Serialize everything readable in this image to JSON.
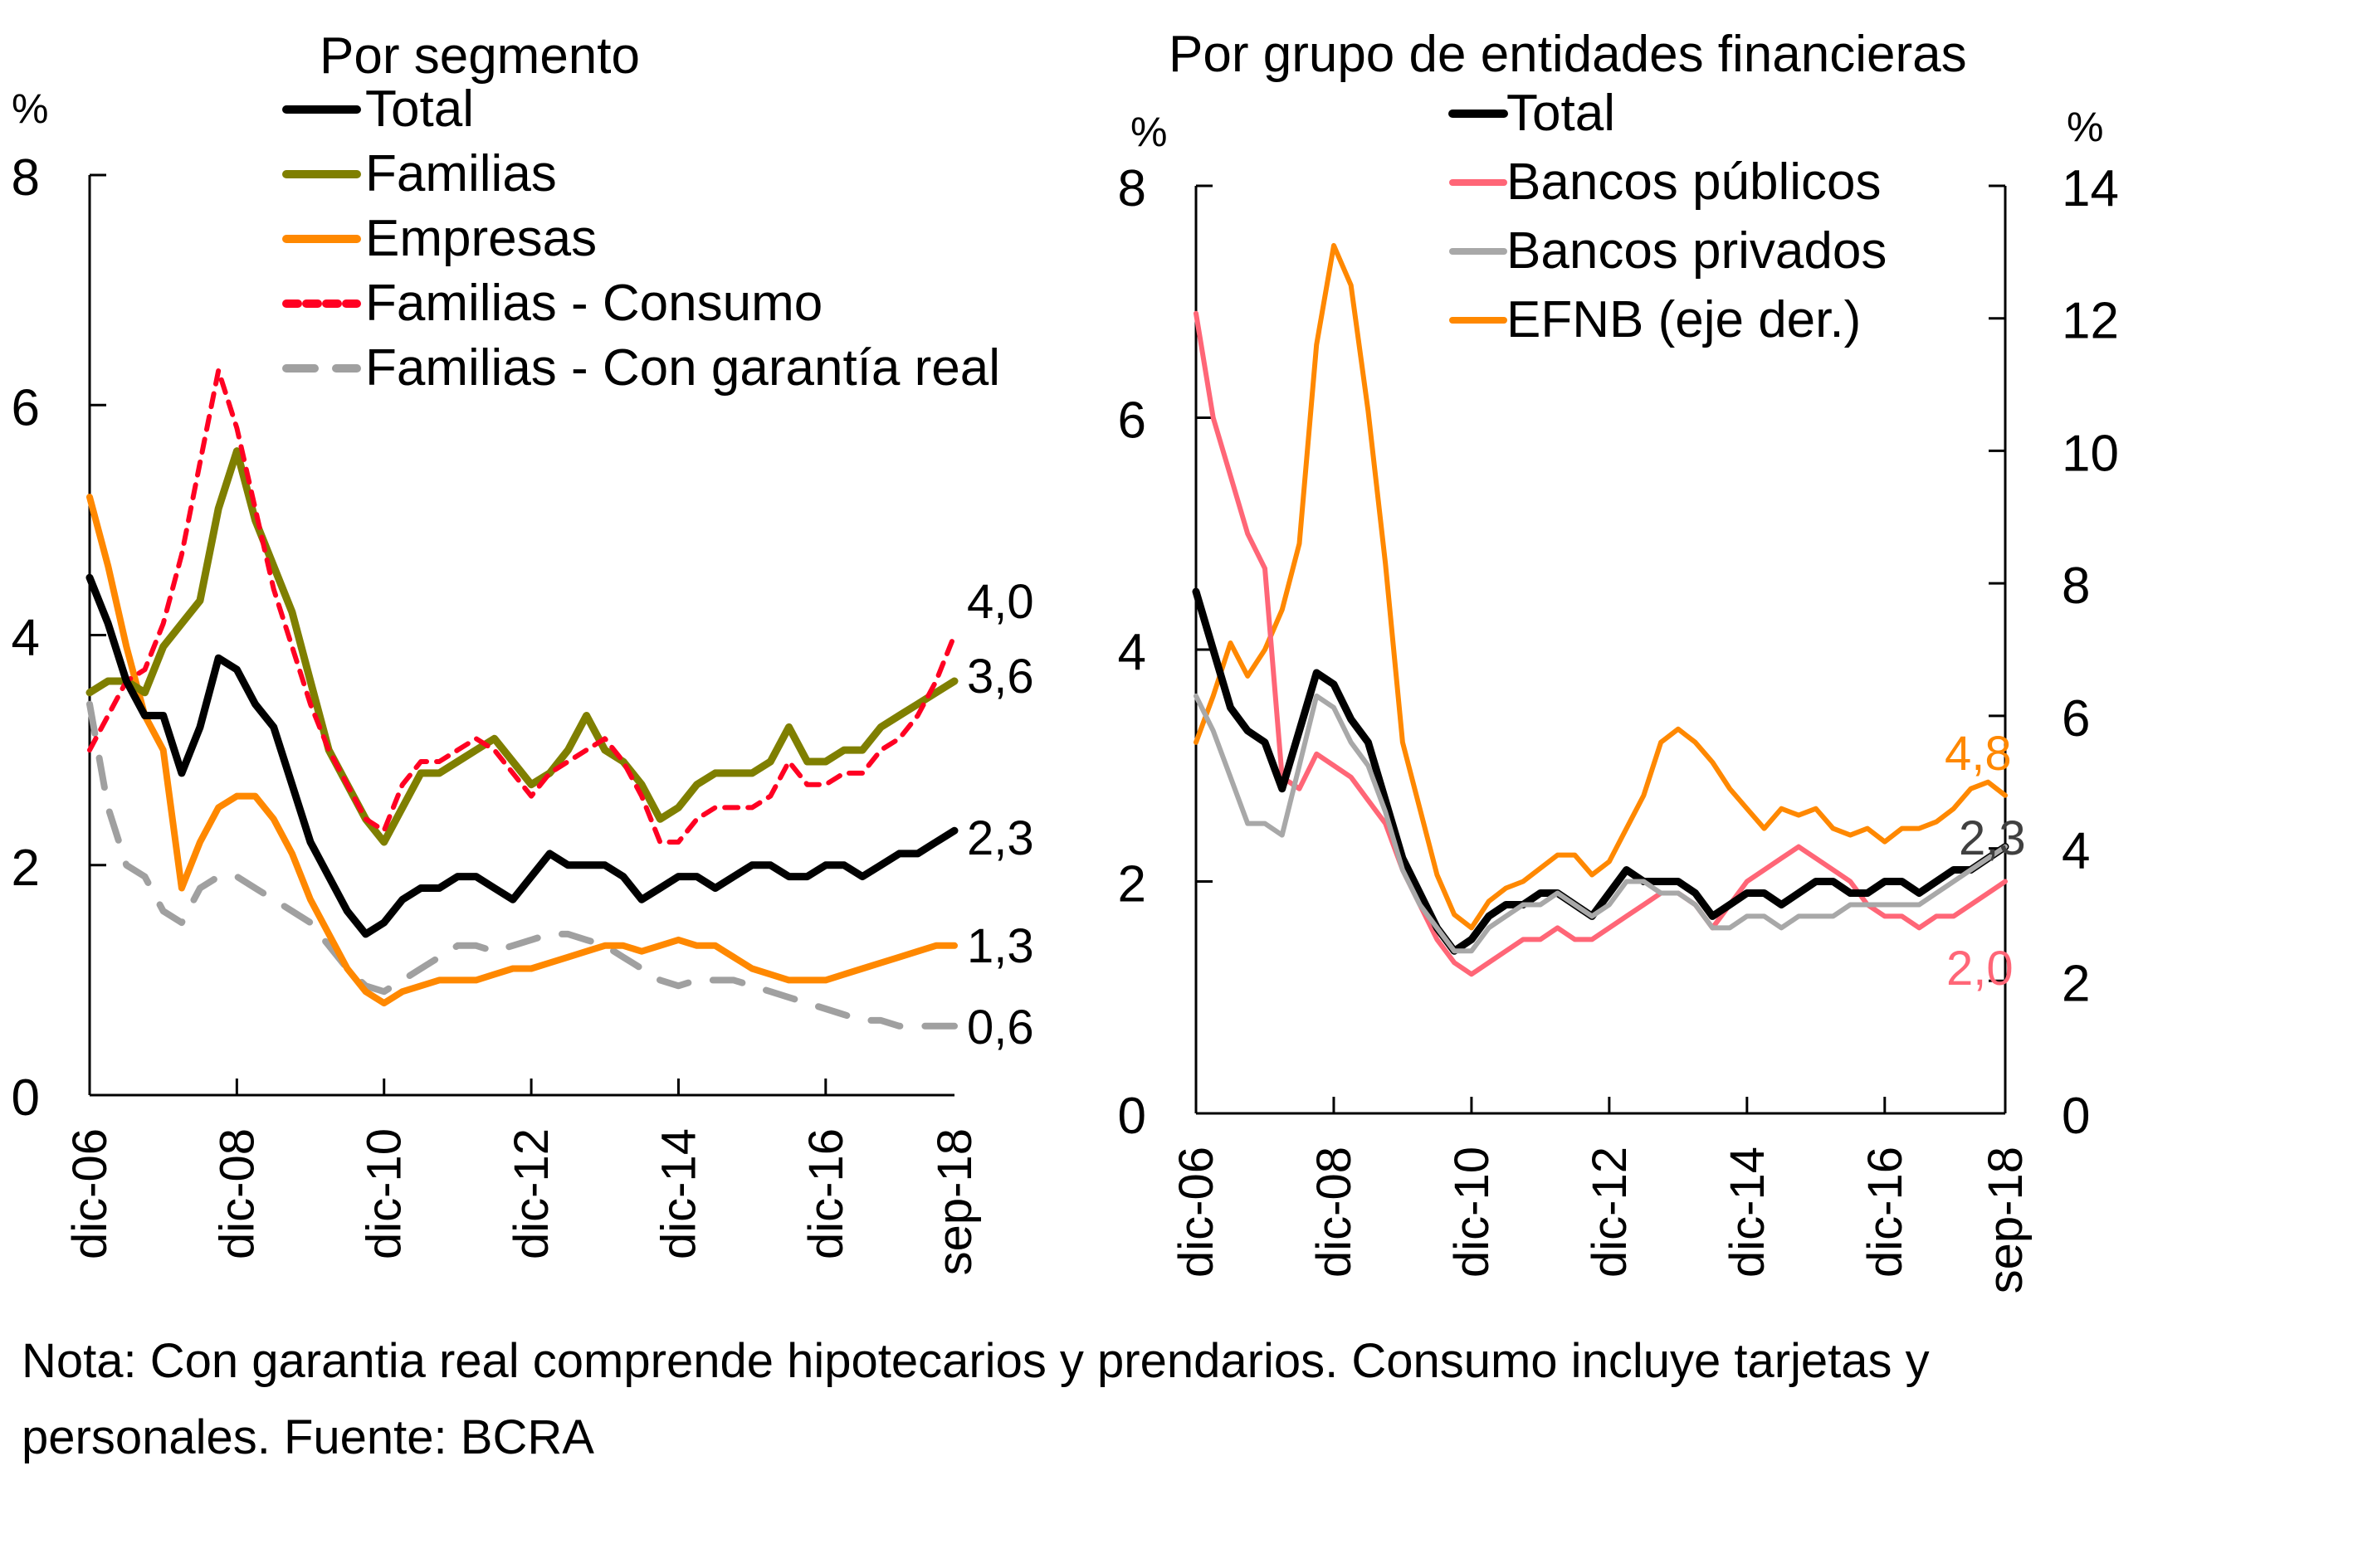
{
  "charts": {
    "left": {
      "title": "Por segmento",
      "y_unit": "%",
      "legend": [
        {
          "label": "Total",
          "color": "#000000",
          "dash": "solid"
        },
        {
          "label": "Familias",
          "color": "#7F7F00",
          "dash": "solid"
        },
        {
          "label": "Empresas",
          "color": "#FF8800",
          "dash": "solid"
        },
        {
          "label": "Familias - Consumo",
          "color": "#FF0022",
          "dash": "dotted"
        },
        {
          "label": "Familias - Con garantía real",
          "color": "#A0A0A0",
          "dash": "dashed"
        }
      ],
      "end_labels": [
        "4,0",
        "3,6",
        "2,3",
        "1,3",
        "0,6"
      ]
    },
    "right": {
      "title": "Por grupo de entidades financieras",
      "y_unit_left": "%",
      "y_unit_right": "%",
      "legend": [
        {
          "label": "Total",
          "color": "#000000"
        },
        {
          "label": "Bancos públicos",
          "color": "#FF6677"
        },
        {
          "label": "Bancos privados",
          "color": "#A8A8A8"
        },
        {
          "label": "EFNB (eje der.)",
          "color": "#FF8800"
        }
      ],
      "end_labels": [
        {
          "text": "4,8",
          "color": "#FF8800"
        },
        {
          "text": "2,3",
          "color": "#404040"
        },
        {
          "text": "2,0",
          "color": "#FF6677"
        }
      ]
    }
  },
  "note": "Nota: Con garantia real comprende hipotecarios y prendarios. Consumo incluye tarjetas y personales. Fuente: BCRA",
  "chart_data": [
    {
      "type": "line",
      "title": "Por segmento",
      "xlabel": "",
      "ylabel": "%",
      "ylim": [
        0,
        8
      ],
      "yticks": [
        0,
        2,
        4,
        6,
        8
      ],
      "x_tick_labels": [
        "dic-06",
        "dic-08",
        "dic-10",
        "dic-12",
        "dic-14",
        "dic-16",
        "sep-18"
      ],
      "x": [
        "dic-06",
        "mar-07",
        "jun-07",
        "sep-07",
        "dic-07",
        "mar-08",
        "jun-08",
        "sep-08",
        "dic-08",
        "mar-09",
        "jun-09",
        "sep-09",
        "dic-09",
        "mar-10",
        "jun-10",
        "sep-10",
        "dic-10",
        "mar-11",
        "jun-11",
        "sep-11",
        "dic-11",
        "mar-12",
        "jun-12",
        "sep-12",
        "dic-12",
        "mar-13",
        "jun-13",
        "sep-13",
        "dic-13",
        "mar-14",
        "jun-14",
        "sep-14",
        "dic-14",
        "mar-15",
        "jun-15",
        "sep-15",
        "dic-15",
        "mar-16",
        "jun-16",
        "sep-16",
        "dic-16",
        "mar-17",
        "jun-17",
        "sep-17",
        "dic-17",
        "mar-18",
        "jun-18",
        "sep-18"
      ],
      "legend": "top-center",
      "grid": false,
      "series": [
        {
          "name": "Total",
          "values": [
            4.5,
            4.1,
            3.6,
            3.3,
            3.3,
            2.8,
            3.2,
            3.8,
            3.7,
            3.4,
            3.2,
            2.7,
            2.2,
            1.9,
            1.6,
            1.4,
            1.5,
            1.7,
            1.8,
            1.8,
            1.9,
            1.9,
            1.8,
            1.7,
            1.9,
            2.1,
            2.0,
            2.0,
            2.0,
            1.9,
            1.7,
            1.8,
            1.9,
            1.9,
            1.8,
            1.9,
            2.0,
            2.0,
            1.9,
            1.9,
            2.0,
            2.0,
            1.9,
            2.0,
            2.1,
            2.1,
            2.2,
            2.3
          ]
        },
        {
          "name": "Familias",
          "values": [
            3.5,
            3.6,
            3.6,
            3.5,
            3.9,
            4.1,
            4.3,
            5.1,
            5.6,
            5.0,
            4.6,
            4.2,
            3.6,
            3.0,
            2.7,
            2.4,
            2.2,
            2.5,
            2.8,
            2.8,
            2.9,
            3.0,
            3.1,
            2.9,
            2.7,
            2.8,
            3.0,
            3.3,
            3.0,
            2.9,
            2.7,
            2.4,
            2.5,
            2.7,
            2.8,
            2.8,
            2.8,
            2.9,
            3.2,
            2.9,
            2.9,
            3.0,
            3.0,
            3.2,
            3.3,
            3.4,
            3.5,
            3.6
          ]
        },
        {
          "name": "Empresas",
          "values": [
            5.2,
            4.6,
            3.9,
            3.3,
            3.0,
            1.8,
            2.2,
            2.5,
            2.6,
            2.6,
            2.4,
            2.1,
            1.7,
            1.4,
            1.1,
            0.9,
            0.8,
            0.9,
            0.95,
            1.0,
            1.0,
            1.0,
            1.05,
            1.1,
            1.1,
            1.15,
            1.2,
            1.25,
            1.3,
            1.3,
            1.25,
            1.3,
            1.35,
            1.3,
            1.3,
            1.2,
            1.1,
            1.05,
            1.0,
            1.0,
            1.0,
            1.05,
            1.1,
            1.15,
            1.2,
            1.25,
            1.3,
            1.3
          ]
        },
        {
          "name": "Familias - Consumo",
          "values": [
            3.0,
            3.3,
            3.6,
            3.7,
            4.1,
            4.7,
            5.5,
            6.3,
            5.8,
            5.1,
            4.4,
            3.9,
            3.4,
            3.0,
            2.7,
            2.4,
            2.3,
            2.7,
            2.9,
            2.9,
            3.0,
            3.1,
            3.0,
            2.8,
            2.6,
            2.8,
            2.9,
            3.0,
            3.1,
            2.9,
            2.6,
            2.2,
            2.2,
            2.4,
            2.5,
            2.5,
            2.5,
            2.6,
            2.9,
            2.7,
            2.7,
            2.8,
            2.8,
            3.0,
            3.1,
            3.3,
            3.6,
            4.0
          ]
        },
        {
          "name": "Familias - Con garantía real",
          "values": [
            3.4,
            2.5,
            2.0,
            1.9,
            1.6,
            1.5,
            1.8,
            1.9,
            1.9,
            1.8,
            1.7,
            1.6,
            1.5,
            1.3,
            1.1,
            0.95,
            0.9,
            1.0,
            1.1,
            1.2,
            1.3,
            1.3,
            1.25,
            1.3,
            1.35,
            1.4,
            1.4,
            1.35,
            1.3,
            1.2,
            1.1,
            1.0,
            0.95,
            1.0,
            1.0,
            1.0,
            0.95,
            0.9,
            0.85,
            0.8,
            0.75,
            0.7,
            0.65,
            0.65,
            0.6,
            0.6,
            0.6,
            0.6
          ]
        }
      ],
      "end_labels": [
        "4,0",
        "3,6",
        "2,3",
        "1,3",
        "0,6"
      ]
    },
    {
      "type": "line",
      "title": "Por grupo de entidades financieras",
      "xlabel": "",
      "ylabel": "%",
      "ylim": [
        0,
        8
      ],
      "yticks": [
        0,
        2,
        4,
        6,
        8
      ],
      "y2label": "%",
      "y2lim": [
        0,
        14
      ],
      "y2ticks": [
        0,
        2,
        4,
        6,
        8,
        10,
        12,
        14
      ],
      "x_tick_labels": [
        "dic-06",
        "dic-08",
        "dic-10",
        "dic-12",
        "dic-14",
        "dic-16",
        "sep-18"
      ],
      "x": [
        "dic-06",
        "mar-07",
        "jun-07",
        "sep-07",
        "dic-07",
        "mar-08",
        "jun-08",
        "sep-08",
        "dic-08",
        "mar-09",
        "jun-09",
        "sep-09",
        "dic-09",
        "mar-10",
        "jun-10",
        "sep-10",
        "dic-10",
        "mar-11",
        "jun-11",
        "sep-11",
        "dic-11",
        "mar-12",
        "jun-12",
        "sep-12",
        "dic-12",
        "mar-13",
        "jun-13",
        "sep-13",
        "dic-13",
        "mar-14",
        "jun-14",
        "sep-14",
        "dic-14",
        "mar-15",
        "jun-15",
        "sep-15",
        "dic-15",
        "mar-16",
        "jun-16",
        "sep-16",
        "dic-16",
        "mar-17",
        "jun-17",
        "sep-17",
        "dic-17",
        "mar-18",
        "jun-18",
        "sep-18"
      ],
      "legend": "top-center",
      "grid": false,
      "series": [
        {
          "name": "Total",
          "axis": "left",
          "values": [
            4.5,
            4.0,
            3.5,
            3.3,
            3.2,
            2.8,
            3.3,
            3.8,
            3.7,
            3.4,
            3.2,
            2.7,
            2.2,
            1.9,
            1.6,
            1.4,
            1.5,
            1.7,
            1.8,
            1.8,
            1.9,
            1.9,
            1.8,
            1.7,
            1.9,
            2.1,
            2.0,
            2.0,
            2.0,
            1.9,
            1.7,
            1.8,
            1.9,
            1.9,
            1.8,
            1.9,
            2.0,
            2.0,
            1.9,
            1.9,
            2.0,
            2.0,
            1.9,
            2.0,
            2.1,
            2.1,
            2.2,
            2.3
          ]
        },
        {
          "name": "Bancos públicos",
          "axis": "left",
          "values": [
            6.9,
            6.0,
            5.5,
            5.0,
            4.7,
            2.9,
            2.8,
            3.1,
            3.0,
            2.9,
            2.7,
            2.5,
            2.1,
            1.8,
            1.5,
            1.3,
            1.2,
            1.3,
            1.4,
            1.5,
            1.5,
            1.6,
            1.5,
            1.5,
            1.6,
            1.7,
            1.8,
            1.9,
            1.9,
            1.8,
            1.6,
            1.8,
            2.0,
            2.1,
            2.2,
            2.3,
            2.2,
            2.1,
            2.0,
            1.8,
            1.7,
            1.7,
            1.6,
            1.7,
            1.7,
            1.8,
            1.9,
            2.0
          ]
        },
        {
          "name": "Bancos privados",
          "axis": "left",
          "values": [
            3.6,
            3.3,
            2.9,
            2.5,
            2.5,
            2.4,
            3.0,
            3.6,
            3.5,
            3.2,
            3.0,
            2.6,
            2.1,
            1.8,
            1.6,
            1.4,
            1.4,
            1.6,
            1.7,
            1.8,
            1.8,
            1.9,
            1.8,
            1.7,
            1.8,
            2.0,
            2.0,
            1.9,
            1.9,
            1.8,
            1.6,
            1.6,
            1.7,
            1.7,
            1.6,
            1.7,
            1.7,
            1.7,
            1.8,
            1.8,
            1.8,
            1.8,
            1.8,
            1.9,
            2.0,
            2.1,
            2.2,
            2.3
          ]
        },
        {
          "name": "EFNB (eje der.)",
          "axis": "right",
          "values": [
            5.6,
            6.3,
            7.1,
            6.6,
            7.0,
            7.6,
            8.6,
            11.6,
            13.1,
            12.5,
            10.6,
            8.3,
            5.6,
            4.6,
            3.6,
            3.0,
            2.8,
            3.2,
            3.4,
            3.5,
            3.7,
            3.9,
            3.9,
            3.6,
            3.8,
            4.3,
            4.8,
            5.6,
            5.8,
            5.6,
            5.3,
            4.9,
            4.6,
            4.3,
            4.6,
            4.5,
            4.6,
            4.3,
            4.2,
            4.3,
            4.1,
            4.3,
            4.3,
            4.4,
            4.6,
            4.9,
            5.0,
            4.8
          ]
        }
      ],
      "end_labels": [
        "4,8",
        "2,3",
        "2,0"
      ]
    }
  ]
}
